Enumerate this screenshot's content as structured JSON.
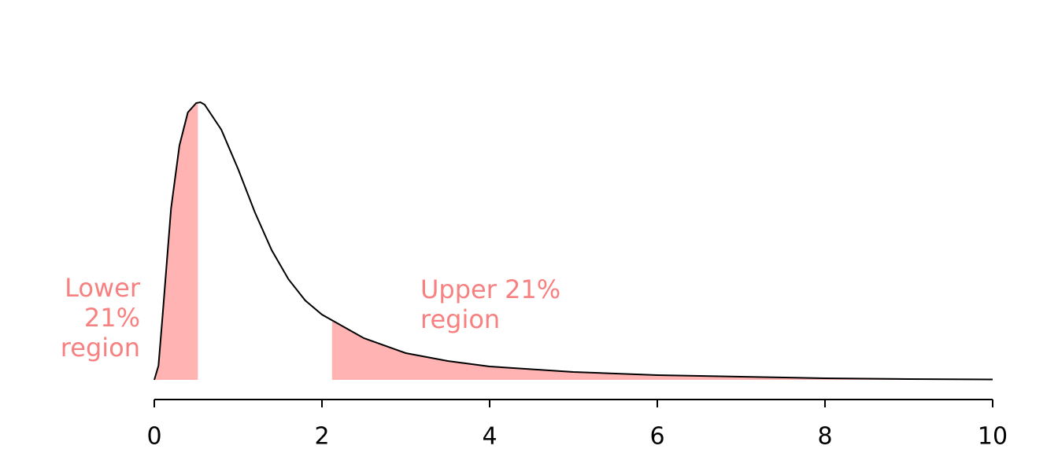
{
  "chart_data": {
    "type": "density",
    "x": [
      0,
      0.05,
      0.1,
      0.2,
      0.3,
      0.4,
      0.5,
      0.55,
      0.6,
      0.8,
      1.0,
      1.2,
      1.4,
      1.6,
      1.8,
      2.0,
      2.5,
      3.0,
      3.5,
      4,
      5,
      6,
      7,
      8,
      9,
      10
    ],
    "values": [
      0,
      0.036,
      0.166,
      0.436,
      0.596,
      0.68,
      0.704,
      0.706,
      0.7,
      0.636,
      0.536,
      0.426,
      0.33,
      0.256,
      0.202,
      0.166,
      0.106,
      0.068,
      0.048,
      0.034,
      0.02,
      0.012,
      0.008,
      0.004,
      0.002,
      0.001
    ],
    "color": "#000000",
    "xlim": [
      0,
      10
    ],
    "xticks": [
      0,
      2,
      4,
      6,
      8,
      10
    ],
    "ylim": [
      0,
      0.8
    ],
    "shaded": [
      {
        "from": 0,
        "to": 0.52,
        "lines": [
          "Lower",
          "21%",
          "region"
        ],
        "color": "#ffb3b3",
        "label_color": "#f78080"
      },
      {
        "from": 2.12,
        "to": 10,
        "lines": [
          "Upper 21%",
          "region"
        ],
        "color": "#ffb3b3",
        "label_color": "#f78080"
      }
    ]
  }
}
